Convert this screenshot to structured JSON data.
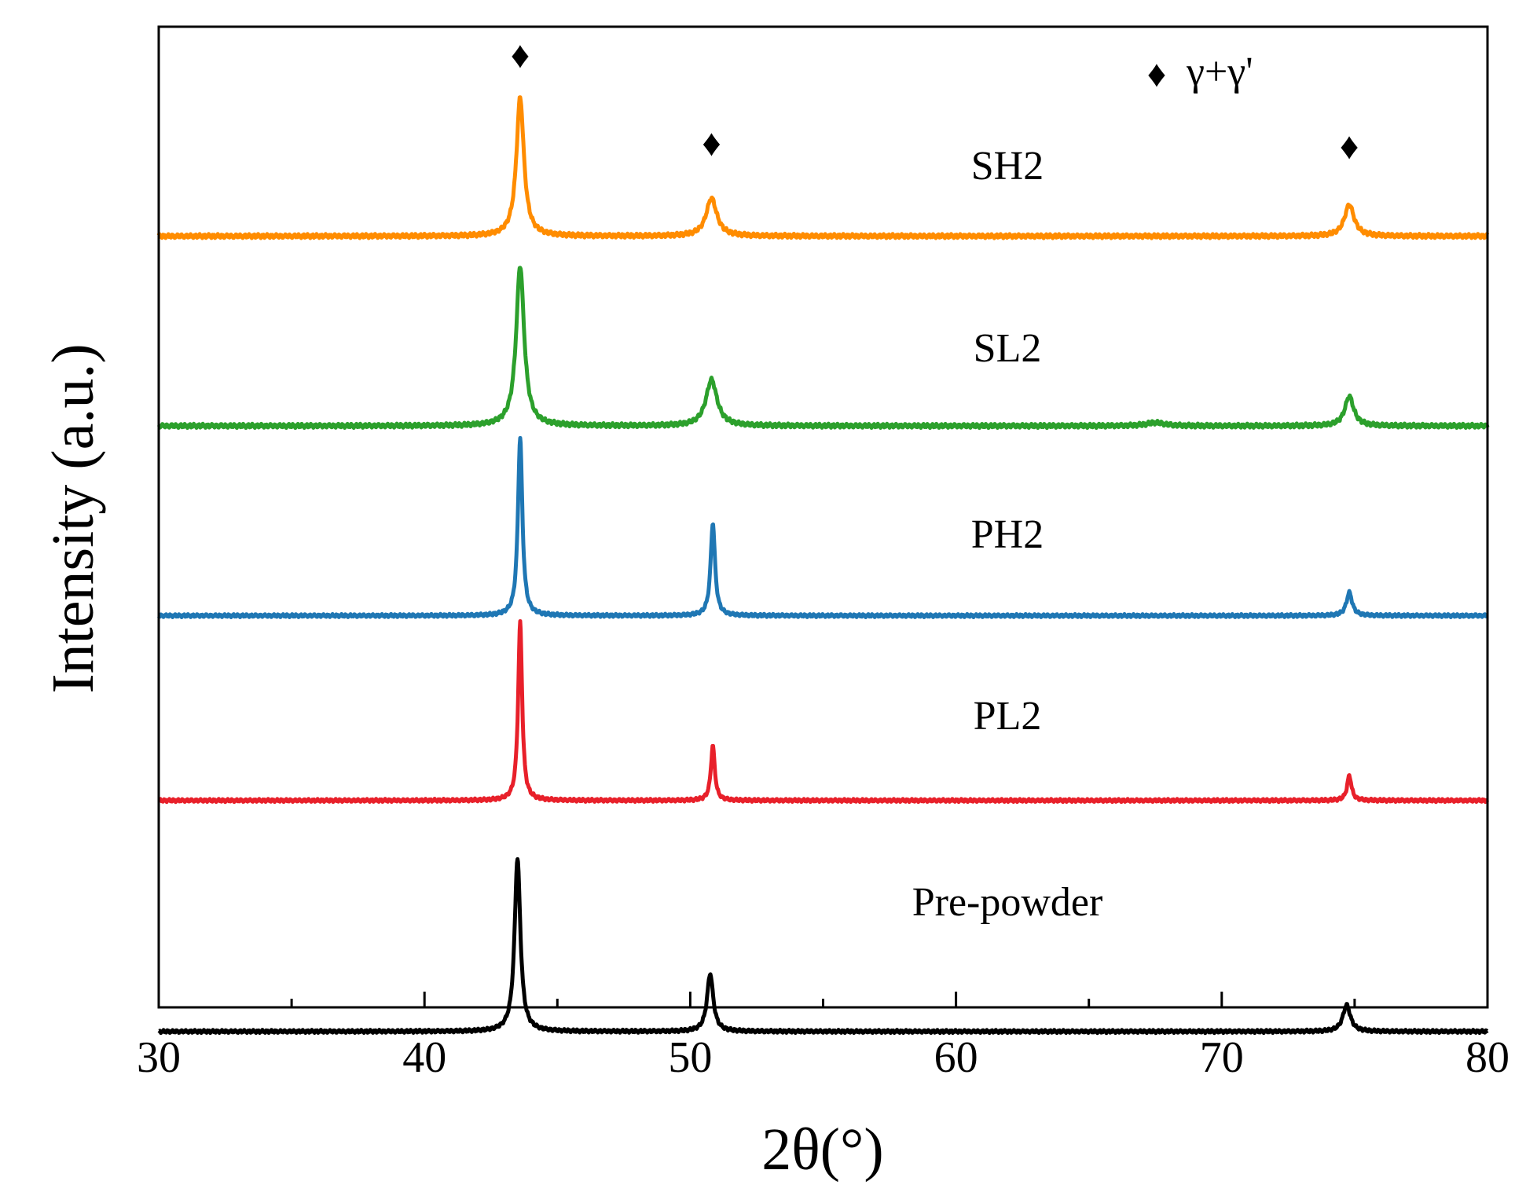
{
  "chart_data": {
    "type": "line",
    "title": "",
    "xlabel": "2θ(°)",
    "ylabel": "Intensity (a.u.)",
    "xlim": [
      30,
      80
    ],
    "x_major_ticks": [
      30,
      40,
      50,
      60,
      70,
      80
    ],
    "x_tick_labels": [
      "30",
      "40",
      "50",
      "60",
      "70",
      "80"
    ],
    "x_minor_ticks": [
      35,
      45,
      55,
      65,
      75
    ],
    "y_unit": "a.u. (stacked, offset per series)",
    "legend": {
      "marker": "♦",
      "label": "γ+γ'",
      "placement": "top-right"
    },
    "phase_markers": [
      {
        "x": 43.6,
        "symbol": "♦",
        "phase": "γ+γ'"
      },
      {
        "x": 50.8,
        "symbol": "♦",
        "phase": "γ+γ'"
      },
      {
        "x": 74.8,
        "symbol": "♦",
        "phase": "γ+γ'"
      }
    ],
    "series": [
      {
        "name": "SH2",
        "color": "#ff8c00",
        "baseline": 4.35,
        "noise": 0.008,
        "peaks": [
          {
            "x": 43.6,
            "h": 0.84,
            "w": 0.17
          },
          {
            "x": 50.8,
            "h": 0.23,
            "w": 0.24
          },
          {
            "x": 74.8,
            "h": 0.19,
            "w": 0.22
          }
        ]
      },
      {
        "name": "SL2",
        "color": "#2ca02c",
        "baseline": 3.2,
        "noise": 0.008,
        "peaks": [
          {
            "x": 43.6,
            "h": 0.97,
            "w": 0.18
          },
          {
            "x": 50.8,
            "h": 0.28,
            "w": 0.25
          },
          {
            "x": 74.8,
            "h": 0.18,
            "w": 0.2
          },
          {
            "x": 67.5,
            "h": 0.02,
            "w": 0.4
          }
        ]
      },
      {
        "name": "PH2",
        "color": "#1f77b4",
        "baseline": 2.05,
        "noise": 0.006,
        "peaks": [
          {
            "x": 43.6,
            "h": 1.08,
            "w": 0.1
          },
          {
            "x": 50.85,
            "h": 0.56,
            "w": 0.1
          },
          {
            "x": 74.8,
            "h": 0.14,
            "w": 0.13
          }
        ]
      },
      {
        "name": "PL2",
        "color": "#e8202a",
        "baseline": 0.93,
        "noise": 0.006,
        "peaks": [
          {
            "x": 43.6,
            "h": 1.08,
            "w": 0.09
          },
          {
            "x": 50.85,
            "h": 0.33,
            "w": 0.09
          },
          {
            "x": 74.8,
            "h": 0.15,
            "w": 0.1
          }
        ]
      },
      {
        "name": "Pre-powder",
        "color": "#000000",
        "baseline": -0.47,
        "noise": 0.006,
        "peaks": [
          {
            "x": 43.5,
            "h": 1.05,
            "w": 0.13
          },
          {
            "x": 50.75,
            "h": 0.35,
            "w": 0.14
          },
          {
            "x": 74.7,
            "h": 0.16,
            "w": 0.17
          }
        ]
      }
    ]
  }
}
